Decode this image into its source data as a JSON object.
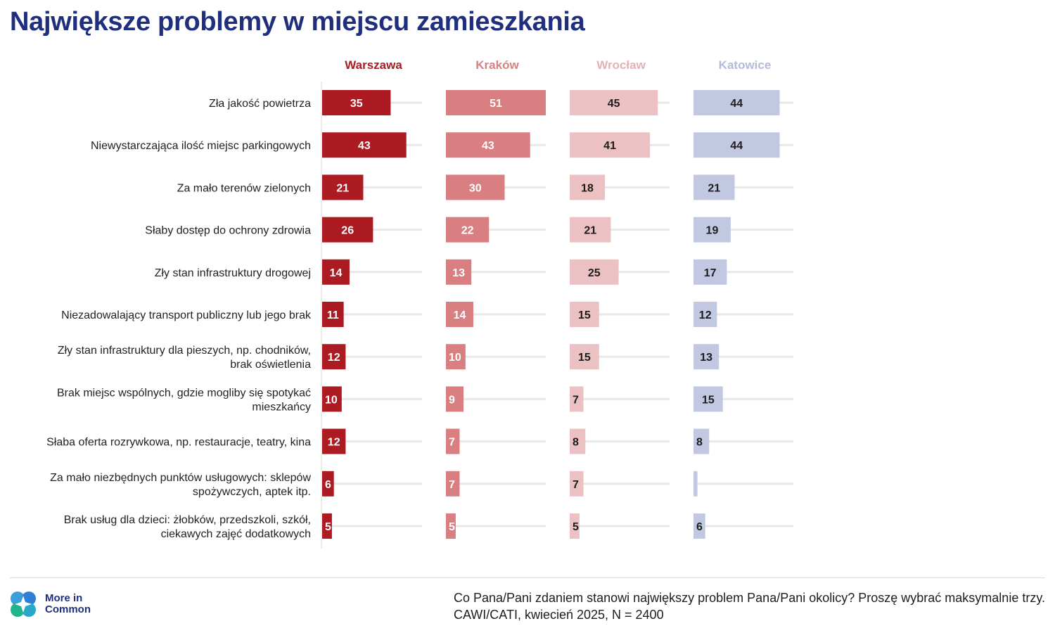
{
  "title": "Największe problemy w miejscu zamieszkania",
  "colors": {
    "title": "#1f2f7e",
    "Warszawa": "#ac1a22",
    "Kraków": "#d97f82",
    "Wrocław": "#ebc1c3",
    "Katowice": "#c2c8e1",
    "track": "#e8e8e8",
    "label_light": "#ffffff",
    "label_dark": "#1d1d1f"
  },
  "chart_data": {
    "type": "bar",
    "orientation": "horizontal",
    "grid": false,
    "legend": "none",
    "categories": [
      [
        "Zła jakość powietrza"
      ],
      [
        "Niewystarczająca ilość miejsc parkingowych"
      ],
      [
        "Za mało terenów zielonych"
      ],
      [
        "Słaby dostęp do ochrony zdrowia"
      ],
      [
        "Zły stan infrastruktury drogowej"
      ],
      [
        "Niezadowalający transport publiczny lub jego brak"
      ],
      [
        "Zły stan infrastruktury dla pieszych, np. chodników,",
        "brak oświetlenia"
      ],
      [
        "Brak miejsc wspólnych, gdzie mogliby się spotykać",
        "mieszkańcy"
      ],
      [
        "Słaba oferta rozrywkowa, np. restauracje, teatry, kina"
      ],
      [
        "Za mało niezbędnych punktów usługowych: sklepów",
        "spożywczych, aptek itp."
      ],
      [
        "Brak usług dla dzieci: żłobków, przedszkoli, szkół,",
        "ciekawych zajęć dodatkowych"
      ]
    ],
    "xlim": [
      0,
      50
    ],
    "series": [
      {
        "name": "Warszawa",
        "values": [
          35,
          43,
          21,
          26,
          14,
          11,
          12,
          10,
          12,
          6,
          5
        ],
        "labels": [
          "35",
          "43",
          "21",
          "26",
          "14",
          "11",
          "12",
          "10",
          "12",
          "6",
          "5"
        ]
      },
      {
        "name": "Kraków",
        "values": [
          51,
          43,
          30,
          22,
          13,
          14,
          10,
          9,
          7,
          7,
          5
        ],
        "labels": [
          "51",
          "43",
          "30",
          "22",
          "13",
          "14",
          "10",
          "9",
          "7",
          "7",
          "5"
        ]
      },
      {
        "name": "Wrocław",
        "values": [
          45,
          41,
          18,
          21,
          25,
          15,
          15,
          7,
          8,
          7,
          5
        ],
        "labels": [
          "45",
          "41",
          "18",
          "21",
          "25",
          "15",
          "15",
          "7",
          "8",
          "7",
          "5"
        ]
      },
      {
        "name": "Katowice",
        "values": [
          44,
          44,
          21,
          19,
          17,
          12,
          13,
          15,
          8,
          2,
          6
        ],
        "labels": [
          "44",
          "44",
          "21",
          "19",
          "17",
          "12",
          "13",
          "15",
          "8",
          "",
          "6"
        ]
      }
    ]
  },
  "logo": {
    "line1": "More in",
    "line2": "Common"
  },
  "footnote": {
    "line1": "Co Pana/Pani zdaniem stanowi największy problem Pana/Pani okolicy? Proszę wybrać maksymalnie trzy.",
    "line2": "CAWI/CATI, kwiecień 2025, N = 2400"
  }
}
